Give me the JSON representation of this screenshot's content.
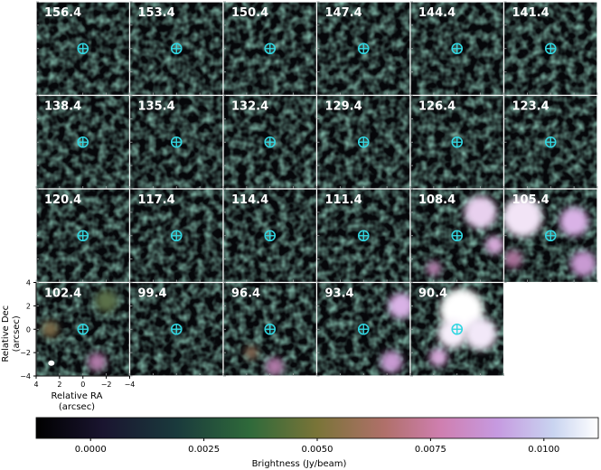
{
  "chart_data": {
    "type": "heatmap",
    "title": "",
    "panel_labels": [
      "156.4",
      "153.4",
      "150.4",
      "147.4",
      "144.4",
      "141.4",
      "138.4",
      "135.4",
      "132.4",
      "129.4",
      "126.4",
      "123.4",
      "120.4",
      "117.4",
      "114.4",
      "111.4",
      "108.4",
      "105.4",
      "102.4",
      "99.4",
      "96.4",
      "93.4",
      "90.4"
    ],
    "grid": {
      "rows": 4,
      "cols": 6
    },
    "xlabel": "Relative RA\n(arcsec)",
    "ylabel": "Relative Dec\n(arcsec)",
    "xticks": [
      "4",
      "2",
      "0",
      "−2",
      "−4"
    ],
    "yticks": [
      "4",
      "2",
      "0",
      "−2",
      "−4"
    ],
    "xlim": [
      4,
      -4
    ],
    "ylim": [
      -4,
      4
    ],
    "marker": {
      "shape": "circled-cross",
      "color": "#33d6e0",
      "position_arcsec": [
        0,
        0
      ]
    },
    "beam": {
      "position_arcsec": [
        2.7,
        -2.9
      ]
    },
    "colorbar": {
      "label": "Brightness (Jy/beam)",
      "range": [
        -0.0012,
        0.0112
      ],
      "ticks": [
        "0.0000",
        "0.0025",
        "0.0050",
        "0.0075",
        "0.0100"
      ],
      "tick_values": [
        0.0,
        0.0025,
        0.005,
        0.0075,
        0.01
      ],
      "colormap": "cubehelix"
    },
    "emission_panels": [
      "108.4",
      "105.4",
      "102.4",
      "96.4",
      "93.4",
      "90.4"
    ]
  }
}
